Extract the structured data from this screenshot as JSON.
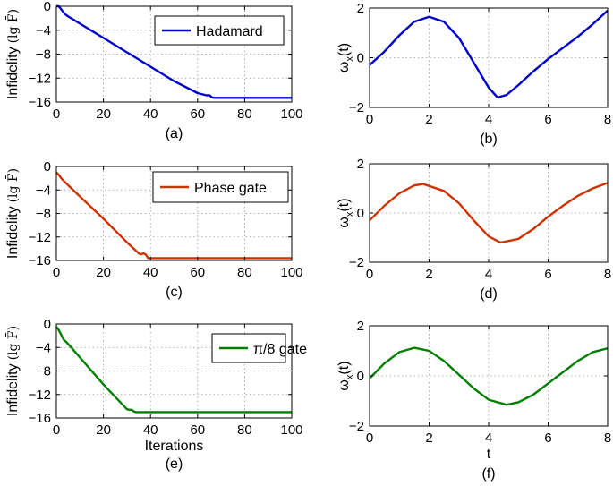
{
  "chart_data": [
    {
      "id": "a",
      "type": "line",
      "caption": "(a)",
      "ylabel_main": "Infidelity",
      "ylabel_math": "(lg F̄)",
      "xlabel": "",
      "xlim": [
        0,
        100
      ],
      "ylim": [
        -16,
        0
      ],
      "xticks": [
        0,
        20,
        40,
        60,
        80,
        100
      ],
      "yticks": [
        0,
        -4,
        -8,
        -12,
        -16
      ],
      "grid": true,
      "legend": "Hadamard",
      "color": "#0000cc",
      "x": [
        0,
        1,
        2,
        3,
        4,
        5,
        10,
        20,
        30,
        40,
        50,
        60,
        63,
        64,
        65,
        66,
        67,
        68,
        70,
        80,
        90,
        100
      ],
      "y": [
        0,
        0,
        -0.5,
        -1.0,
        -1.4,
        -1.7,
        -2.9,
        -5.3,
        -7.7,
        -10.1,
        -12.5,
        -14.5,
        -14.8,
        -14.9,
        -14.85,
        -15.2,
        -15.3,
        -15.3,
        -15.3,
        -15.3,
        -15.3,
        -15.3
      ]
    },
    {
      "id": "b",
      "type": "line",
      "caption": "(b)",
      "ylabel_main": "ω",
      "ylabel_sub": "x",
      "ylabel_tail": "(t)",
      "xlabel": "",
      "xlim": [
        0,
        8
      ],
      "ylim": [
        -2,
        2
      ],
      "xticks": [
        0,
        2,
        4,
        6,
        8
      ],
      "yticks": [
        2,
        0,
        -2
      ],
      "grid": true,
      "color": "#0000cc",
      "x": [
        0,
        0.5,
        1,
        1.5,
        2,
        2.5,
        3,
        3.5,
        4,
        4.3,
        4.6,
        5,
        5.5,
        6,
        6.5,
        7,
        7.5,
        8
      ],
      "y": [
        -0.3,
        0.25,
        0.9,
        1.45,
        1.65,
        1.45,
        0.8,
        -0.2,
        -1.2,
        -1.6,
        -1.5,
        -1.1,
        -0.55,
        -0.05,
        0.4,
        0.85,
        1.35,
        1.9
      ]
    },
    {
      "id": "c",
      "type": "line",
      "caption": "(c)",
      "ylabel_main": "Infidelity",
      "ylabel_math": "(lg F̄)",
      "xlabel": "",
      "xlim": [
        0,
        100
      ],
      "ylim": [
        -16,
        0
      ],
      "xticks": [
        0,
        20,
        40,
        60,
        80,
        100
      ],
      "yticks": [
        0,
        -4,
        -8,
        -12,
        -16
      ],
      "grid": true,
      "legend": "Phase gate",
      "color": "#cc3300",
      "x": [
        0,
        1,
        2,
        3,
        5,
        10,
        20,
        30,
        35,
        36,
        37,
        38,
        39,
        40,
        50,
        60,
        70,
        80,
        90,
        100
      ],
      "y": [
        -1.0,
        -1.4,
        -2.0,
        -2.4,
        -3.2,
        -5.1,
        -8.9,
        -12.9,
        -14.8,
        -14.95,
        -14.8,
        -15.0,
        -15.6,
        -15.6,
        -15.6,
        -15.6,
        -15.6,
        -15.6,
        -15.6,
        -15.6
      ]
    },
    {
      "id": "d",
      "type": "line",
      "caption": "(d)",
      "ylabel_main": "ω",
      "ylabel_sub": "x",
      "ylabel_tail": "(t)",
      "xlabel": "",
      "xlim": [
        0,
        8
      ],
      "ylim": [
        -2,
        2
      ],
      "xticks": [
        0,
        2,
        4,
        6,
        8
      ],
      "yticks": [
        2,
        0,
        -2
      ],
      "grid": true,
      "color": "#cc3300",
      "x": [
        0,
        0.5,
        1,
        1.5,
        1.8,
        2.5,
        3,
        3.5,
        4,
        4.4,
        5,
        5.5,
        6,
        6.5,
        7,
        7.5,
        8
      ],
      "y": [
        -0.3,
        0.3,
        0.8,
        1.12,
        1.18,
        0.9,
        0.4,
        -0.3,
        -0.95,
        -1.2,
        -1.05,
        -0.65,
        -0.15,
        0.3,
        0.7,
        1.0,
        1.22
      ]
    },
    {
      "id": "e",
      "type": "line",
      "caption": "(e)",
      "ylabel_main": "Infidelity",
      "ylabel_math": "(lg F̄)",
      "xlabel": "Iterations",
      "xlim": [
        0,
        100
      ],
      "ylim": [
        -16,
        0
      ],
      "xticks": [
        0,
        20,
        40,
        60,
        80,
        100
      ],
      "yticks": [
        0,
        -4,
        -8,
        -12,
        -16
      ],
      "grid": true,
      "legend": "π/8 gate",
      "color": "#008000",
      "x": [
        0,
        1,
        2,
        3,
        5,
        10,
        20,
        30,
        31,
        32,
        33,
        34,
        40,
        50,
        60,
        70,
        80,
        90,
        100
      ],
      "y": [
        -0.5,
        -1.0,
        -1.8,
        -2.6,
        -3.4,
        -5.7,
        -10.3,
        -14.5,
        -14.6,
        -14.6,
        -14.9,
        -15.0,
        -15.0,
        -15.0,
        -15.0,
        -15.0,
        -15.0,
        -15.0,
        -15.0
      ]
    },
    {
      "id": "f",
      "type": "line",
      "caption": "(f)",
      "ylabel_main": "ω",
      "ylabel_sub": "x",
      "ylabel_tail": "(t)",
      "xlabel": "t",
      "xlim": [
        0,
        8
      ],
      "ylim": [
        -2,
        2
      ],
      "xticks": [
        0,
        2,
        4,
        6,
        8
      ],
      "yticks": [
        2,
        0,
        -2
      ],
      "grid": true,
      "color": "#008000",
      "x": [
        0,
        0.5,
        1,
        1.5,
        2,
        2.5,
        3,
        3.5,
        4,
        4.6,
        5,
        5.5,
        6,
        6.5,
        7,
        7.5,
        8
      ],
      "y": [
        -0.1,
        0.5,
        0.95,
        1.12,
        1.0,
        0.6,
        0.05,
        -0.5,
        -0.95,
        -1.15,
        -1.05,
        -0.75,
        -0.3,
        0.15,
        0.6,
        0.95,
        1.1
      ]
    }
  ]
}
